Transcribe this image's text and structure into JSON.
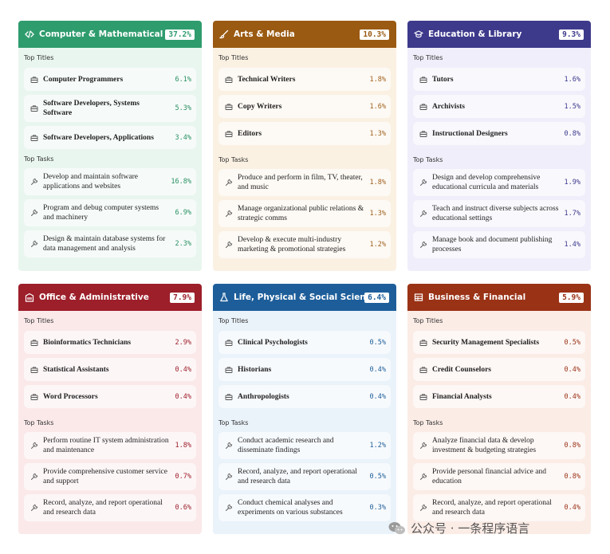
{
  "labels": {
    "top_titles": "Top Titles",
    "top_tasks": "Top Tasks"
  },
  "cards": [
    {
      "title": "Computer & Mathematical",
      "pct": "37.2%",
      "header_color": "#2f9c6e",
      "bg_color": "#e9f6ef",
      "pct_color": "#2a8f63",
      "icon": "code-icon",
      "titles": [
        {
          "label": "Computer Programmers",
          "pct": "6.1%"
        },
        {
          "label": "Software Developers, Systems Software",
          "pct": "5.3%"
        },
        {
          "label": "Software Developers, Applications",
          "pct": "3.4%"
        }
      ],
      "tasks": [
        {
          "label": "Develop and maintain software applications and websites",
          "pct": "16.8%"
        },
        {
          "label": "Program and debug computer systems and machinery",
          "pct": "6.9%"
        },
        {
          "label": "Design & maintain database systems for data management and analysis",
          "pct": "2.3%"
        }
      ]
    },
    {
      "title": "Arts & Media",
      "pct": "10.3%",
      "header_color": "#9a5a12",
      "bg_color": "#fbf1e3",
      "pct_color": "#a0611c",
      "icon": "brush-icon",
      "titles": [
        {
          "label": "Technical Writers",
          "pct": "1.8%"
        },
        {
          "label": "Copy Writers",
          "pct": "1.6%"
        },
        {
          "label": "Editors",
          "pct": "1.3%"
        }
      ],
      "tasks": [
        {
          "label": "Produce and perform in film, TV, theater, and music",
          "pct": "1.8%"
        },
        {
          "label": "Manage organizational public relations & strategic comms",
          "pct": "1.3%"
        },
        {
          "label": "Develop & execute multi-industry marketing & promotional strategies",
          "pct": "1.2%"
        }
      ]
    },
    {
      "title": "Education & Library",
      "pct": "9.3%",
      "header_color": "#3d3a8c",
      "bg_color": "#efeefa",
      "pct_color": "#3d3a8c",
      "icon": "graduation-cap-icon",
      "titles": [
        {
          "label": "Tutors",
          "pct": "1.6%"
        },
        {
          "label": "Archivists",
          "pct": "1.5%"
        },
        {
          "label": "Instructional Designers",
          "pct": "0.8%"
        }
      ],
      "tasks": [
        {
          "label": "Design and develop comprehensive educational curricula and materials",
          "pct": "1.9%"
        },
        {
          "label": "Teach and instruct diverse subjects across educational settings",
          "pct": "1.7%"
        },
        {
          "label": "Manage book and document publishing processes",
          "pct": "1.4%"
        }
      ]
    },
    {
      "title": "Office & Administrative",
      "pct": "7.9%",
      "header_color": "#9c1f2a",
      "bg_color": "#fbe9ea",
      "pct_color": "#9c1f2a",
      "icon": "building-icon",
      "titles": [
        {
          "label": "Bioinformatics Technicians",
          "pct": "2.9%"
        },
        {
          "label": "Statistical Assistants",
          "pct": "0.4%"
        },
        {
          "label": "Word Processors",
          "pct": "0.4%"
        }
      ],
      "tasks": [
        {
          "label": "Perform routine IT system administration and maintenance",
          "pct": "1.8%"
        },
        {
          "label": "Provide comprehensive customer service and support",
          "pct": "0.7%"
        },
        {
          "label": "Record, analyze, and report operational and research data",
          "pct": "0.6%"
        }
      ]
    },
    {
      "title": "Life, Physical & Social Science",
      "pct": "6.4%",
      "header_color": "#1d5e9a",
      "bg_color": "#eaf2fa",
      "pct_color": "#1d5e9a",
      "icon": "flask-icon",
      "titles": [
        {
          "label": "Clinical Psychologists",
          "pct": "0.5%"
        },
        {
          "label": "Historians",
          "pct": "0.4%"
        },
        {
          "label": "Anthropologists",
          "pct": "0.4%"
        }
      ],
      "tasks": [
        {
          "label": "Conduct academic research and disseminate findings",
          "pct": "1.2%"
        },
        {
          "label": "Record, analyze, and report operational and research data",
          "pct": "0.5%"
        },
        {
          "label": "Conduct chemical analyses and experiments on various substances",
          "pct": "0.3%"
        }
      ]
    },
    {
      "title": "Business & Financial",
      "pct": "5.9%",
      "header_color": "#9a3216",
      "bg_color": "#fbece6",
      "pct_color": "#9a3216",
      "icon": "table-icon",
      "titles": [
        {
          "label": "Security Management Specialists",
          "pct": "0.5%"
        },
        {
          "label": "Credit Counselors",
          "pct": "0.4%"
        },
        {
          "label": "Financial Analysts",
          "pct": "0.4%"
        }
      ],
      "tasks": [
        {
          "label": "Analyze financial data & develop investment & budgeting strategies",
          "pct": "0.8%"
        },
        {
          "label": "Provide personal financial advice and education",
          "pct": "0.8%"
        },
        {
          "label": "Record, analyze, and report operational and research data",
          "pct": "0.4%"
        }
      ]
    }
  ],
  "watermark": {
    "text": "公众号 · 一条程序语言",
    "icon": "wechat-icon"
  }
}
